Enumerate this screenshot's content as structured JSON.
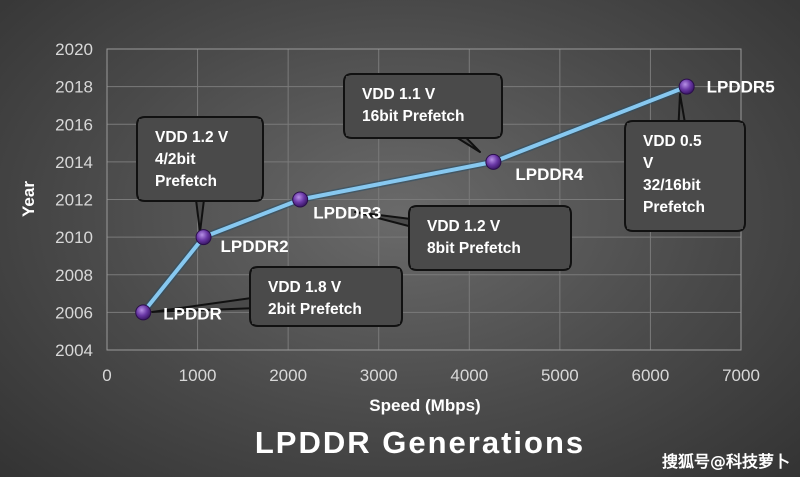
{
  "chart_data": {
    "type": "line",
    "title": "LPDDR Generations",
    "xlabel": "Speed (Mbps)",
    "ylabel": "Year",
    "xlim": [
      0,
      7000
    ],
    "ylim": [
      2004,
      2020
    ],
    "xticks": [
      "0",
      "1000",
      "2000",
      "3000",
      "4000",
      "5000",
      "6000",
      "7000"
    ],
    "yticks": [
      "2004",
      "2006",
      "2008",
      "2010",
      "2012",
      "2014",
      "2016",
      "2018",
      "2020"
    ],
    "grid": true,
    "series": [
      {
        "name": "LPDDR",
        "points": [
          {
            "label": "LPDDR",
            "x": 400,
            "y": 2006
          },
          {
            "label": "LPDDR2",
            "x": 1066,
            "y": 2010
          },
          {
            "label": "LPDDR3",
            "x": 2133,
            "y": 2012
          },
          {
            "label": "LPDDR4",
            "x": 4266,
            "y": 2014
          },
          {
            "label": "LPDDR5",
            "x": 6400,
            "y": 2018
          }
        ]
      }
    ],
    "annotations": [
      {
        "point": "LPDDR",
        "lines": [
          "VDD 1.8 V",
          "2bit Prefetch"
        ]
      },
      {
        "point": "LPDDR2",
        "lines": [
          "VDD 1.2 V",
          "4/2bit",
          "Prefetch"
        ]
      },
      {
        "point": "LPDDR3",
        "lines": [
          "VDD 1.2 V",
          "8bit Prefetch"
        ]
      },
      {
        "point": "LPDDR4",
        "lines": [
          "VDD 1.1 V",
          "16bit Prefetch"
        ]
      },
      {
        "point": "LPDDR5",
        "lines": [
          "VDD 0.5",
          "V",
          "32/16bit",
          "Prefetch"
        ]
      }
    ],
    "colors": {
      "line": "#87c8f0",
      "marker": "#5a2d8c",
      "grid": "#7a7a7a",
      "plot_border": "#9a9a9a",
      "callout_fill": "#4a4a4a",
      "callout_border": "#111111"
    }
  },
  "watermark": "搜狐号@科技萝卜"
}
